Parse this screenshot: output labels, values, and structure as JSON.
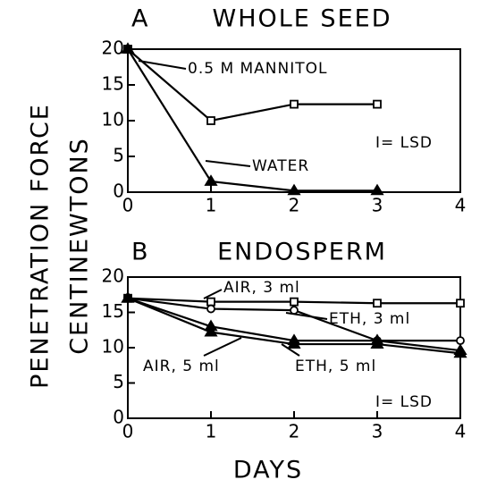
{
  "shared": {
    "ylabel": [
      "PENETRATION FORCE",
      "CENTINEWTONS"
    ],
    "xlabel": "DAYS"
  },
  "chart_data": [
    {
      "type": "line",
      "panel": "A",
      "title": "WHOLE SEED",
      "xlim": [
        0,
        4
      ],
      "xticks": [
        0,
        1,
        2,
        3,
        4
      ],
      "ylim": [
        0,
        20
      ],
      "yticks": [
        0,
        5,
        10,
        15,
        20
      ],
      "annotation": "I= LSD",
      "series": [
        {
          "name": "0.5 M MANNITOL",
          "marker": "square",
          "filled": false,
          "x": [
            0,
            1,
            2,
            3
          ],
          "values": [
            20,
            10,
            12.3,
            12.3
          ]
        },
        {
          "name": "WATER",
          "marker": "triangle",
          "filled": true,
          "x": [
            0,
            1,
            2,
            3
          ],
          "values": [
            20,
            1.5,
            0.2,
            0.2
          ]
        }
      ]
    },
    {
      "type": "line",
      "panel": "B",
      "title": "ENDOSPERM",
      "xlim": [
        0,
        4
      ],
      "xticks": [
        0,
        1,
        2,
        3,
        4
      ],
      "ylim": [
        0,
        20
      ],
      "yticks": [
        0,
        5,
        10,
        15,
        20
      ],
      "annotation": "I= LSD",
      "series": [
        {
          "name": "AIR, 3 ml",
          "marker": "square",
          "filled": false,
          "x": [
            0,
            1,
            2,
            3,
            4
          ],
          "values": [
            17,
            16.5,
            16.5,
            16.3,
            16.3
          ]
        },
        {
          "name": "ETH, 3 ml",
          "marker": "circle",
          "filled": false,
          "x": [
            0,
            1,
            2,
            3,
            4
          ],
          "values": [
            17,
            15.5,
            15.3,
            11,
            11
          ]
        },
        {
          "name": "AIR, 5 ml",
          "marker": "triangle",
          "filled": true,
          "x": [
            0,
            1,
            2,
            3,
            4
          ],
          "values": [
            17,
            12.2,
            10.5,
            10.5,
            9.2
          ]
        },
        {
          "name": "ETH, 5 ml",
          "marker": "triangle",
          "filled": true,
          "x": [
            0,
            1,
            2,
            3,
            4
          ],
          "values": [
            17,
            13,
            11,
            11,
            9.6
          ]
        }
      ]
    }
  ]
}
